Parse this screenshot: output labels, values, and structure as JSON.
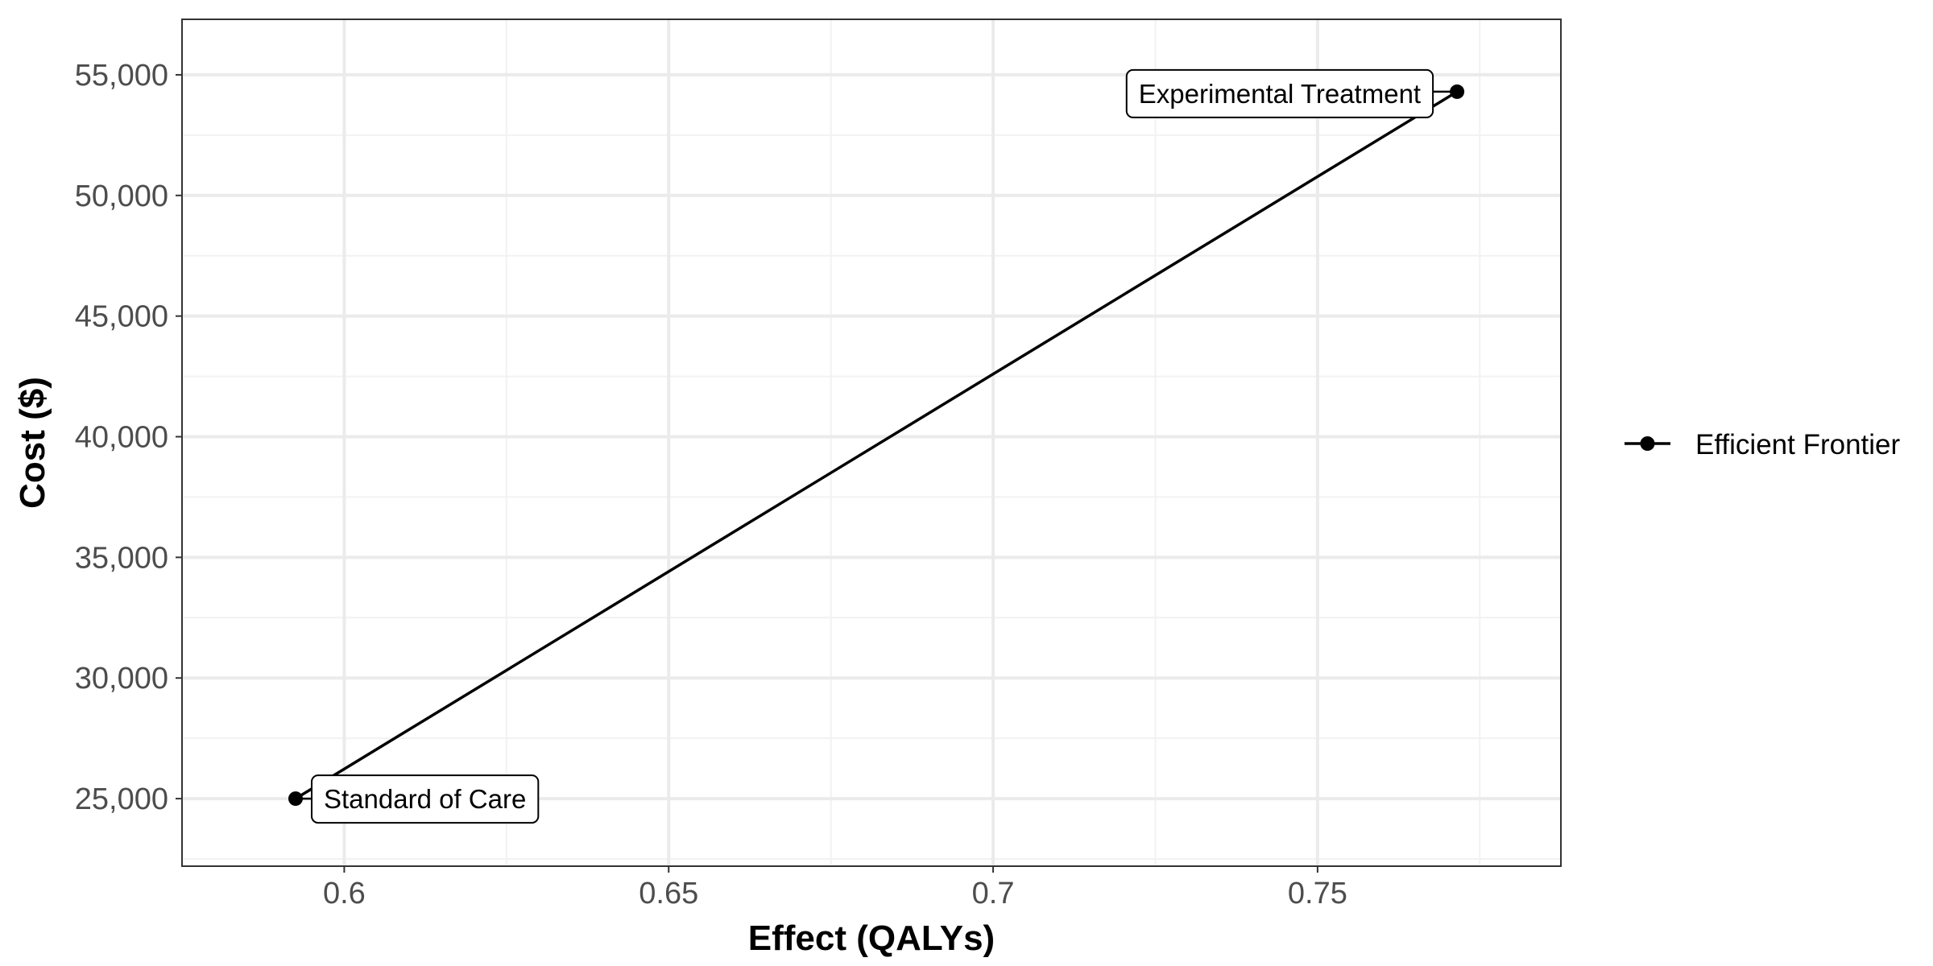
{
  "chart_data": {
    "type": "line",
    "title": "",
    "xlabel": "Effect (QALYs)",
    "ylabel": "Cost ($)",
    "xlim": [
      0.575,
      0.7875
    ],
    "ylim": [
      22200,
      57300
    ],
    "x_ticks": [
      0.6,
      0.65,
      0.7,
      0.75
    ],
    "x_tick_labels": [
      "0.6",
      "0.65",
      "0.7",
      "0.75"
    ],
    "y_ticks": [
      25000,
      30000,
      35000,
      40000,
      45000,
      50000,
      55000
    ],
    "y_tick_labels": [
      "25,000",
      "30,000",
      "35,000",
      "40,000",
      "45,000",
      "50,000",
      "55,000"
    ],
    "grid": true,
    "legend": {
      "position": "right",
      "entries": [
        "Efficient Frontier"
      ]
    },
    "series": [
      {
        "name": "Efficient Frontier",
        "color": "#000000",
        "points": [
          {
            "x": 0.5925,
            "y": 25000,
            "label": "Standard of Care"
          },
          {
            "x": 0.7715,
            "y": 54300,
            "label": "Experimental Treatment"
          }
        ]
      }
    ]
  }
}
